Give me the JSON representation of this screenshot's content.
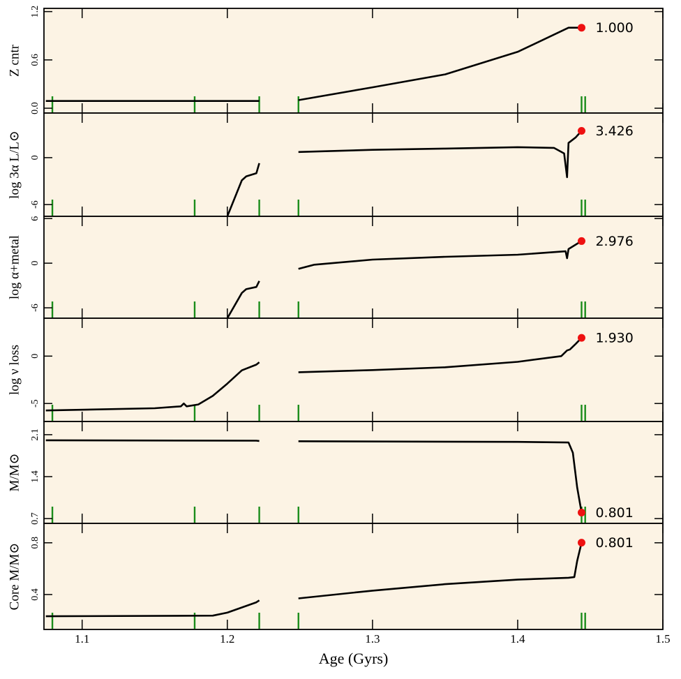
{
  "chart_data": [
    {
      "type": "line",
      "ylabel": "Z cntr",
      "color": "#000000",
      "x": [
        1.075,
        1.15,
        1.222,
        1.235,
        1.249,
        1.3,
        1.35,
        1.4,
        1.435,
        1.444
      ],
      "values": [
        0.09,
        0.09,
        0.09,
        null,
        0.1,
        0.26,
        0.42,
        0.7,
        1.0,
        1.0
      ],
      "xlim": [
        1.0737,
        1.5
      ],
      "xticks": [
        1.1,
        1.2,
        1.3,
        1.4,
        1.5
      ],
      "ylim": [
        -0.06,
        1.24
      ],
      "yticks": [
        {
          "value": 0,
          "label": "0.0"
        },
        0.6,
        1.2
      ],
      "vlines": [
        1.0795,
        1.1775,
        1.222,
        1.249,
        1.444,
        1.4465
      ],
      "vline_color": "#1a8c1a",
      "marker": {
        "x": 1.444,
        "values": [
          1.0
        ],
        "value_labels": [
          "1.000"
        ],
        "color": "#ee1111"
      }
    },
    {
      "type": "line",
      "ylabel": "log 3α L/L⊙",
      "color": "#000000",
      "x": [
        1.2,
        1.21,
        1.213,
        1.22,
        1.222,
        1.235,
        1.249,
        1.3,
        1.35,
        1.4,
        1.425,
        1.432,
        1.434,
        1.435,
        1.44,
        1.444
      ],
      "values": [
        -7.5,
        -2.9,
        -2.4,
        -2.0,
        -0.7,
        null,
        0.72,
        1.0,
        1.16,
        1.34,
        1.25,
        0.54,
        -2.5,
        1.88,
        2.6,
        3.426
      ],
      "xlim": [
        1.0737,
        1.5
      ],
      "xticks": [
        1.1,
        1.2,
        1.3,
        1.4,
        1.5
      ],
      "ylim": [
        -7.5,
        5.7
      ],
      "yticks": [
        -6,
        0
      ],
      "vlines": [
        1.0795,
        1.1775,
        1.222,
        1.249,
        1.444,
        1.4465
      ],
      "vline_color": "#1a8c1a",
      "marker": {
        "x": 1.444,
        "values": [
          3.426
        ],
        "value_labels": [
          "3.426"
        ],
        "color": "#ee1111"
      }
    },
    {
      "type": "line",
      "ylabel": "log α+metal",
      "color": "#000000",
      "x": [
        1.2,
        1.21,
        1.213,
        1.22,
        1.222,
        1.235,
        1.249,
        1.26,
        1.3,
        1.35,
        1.4,
        1.433,
        1.434,
        1.435,
        1.444
      ],
      "values": [
        -7.4,
        -4.0,
        -3.5,
        -3.2,
        -2.4,
        null,
        -0.76,
        -0.2,
        0.48,
        0.86,
        1.14,
        1.6,
        0.67,
        1.9,
        2.976
      ],
      "xlim": [
        1.0737,
        1.5
      ],
      "xticks": [
        1.1,
        1.2,
        1.3,
        1.4,
        1.5
      ],
      "ylim": [
        -7.4,
        6.3
      ],
      "yticks": [
        -6,
        0,
        6
      ],
      "vlines": [
        1.0795,
        1.1775,
        1.222,
        1.249,
        1.444,
        1.4465
      ],
      "vline_color": "#1a8c1a",
      "marker": {
        "x": 1.444,
        "values": [
          2.976
        ],
        "value_labels": [
          "2.976"
        ],
        "color": "#ee1111"
      }
    },
    {
      "type": "line",
      "ylabel": "log ν loss",
      "color": "#000000",
      "x": [
        1.075,
        1.15,
        1.168,
        1.17,
        1.172,
        1.18,
        1.19,
        1.2,
        1.21,
        1.22,
        1.222,
        1.235,
        1.249,
        1.3,
        1.35,
        1.4,
        1.43,
        1.434,
        1.436,
        1.44,
        1.444
      ],
      "values": [
        -5.74,
        -5.5,
        -5.3,
        -5.0,
        -5.3,
        -5.1,
        -4.2,
        -2.9,
        -1.5,
        -0.9,
        -0.65,
        null,
        -1.7,
        -1.47,
        -1.18,
        -0.6,
        0.0,
        0.6,
        0.7,
        1.3,
        1.93
      ],
      "xlim": [
        1.0737,
        1.5
      ],
      "xticks": [
        1.1,
        1.2,
        1.3,
        1.4,
        1.5
      ],
      "ylim": [
        -6.9,
        4.0
      ],
      "yticks": [
        -5,
        0
      ],
      "vlines": [
        1.0795,
        1.1775,
        1.222,
        1.249,
        1.444,
        1.4465
      ],
      "vline_color": "#1a8c1a",
      "marker": {
        "x": 1.444,
        "values": [
          1.93
        ],
        "value_labels": [
          "1.930"
        ],
        "color": "#ee1111"
      }
    },
    {
      "type": "line",
      "ylabel": "M/M⊙",
      "color": "#000000",
      "x": [
        1.075,
        1.22,
        1.222,
        1.235,
        1.249,
        1.4,
        1.435,
        1.438,
        1.441,
        1.444
      ],
      "values": [
        2.007,
        2.0,
        1.995,
        null,
        1.99,
        1.98,
        1.97,
        1.8,
        1.22,
        0.801
      ],
      "xlim": [
        1.0737,
        1.5
      ],
      "xticks": [
        1.1,
        1.2,
        1.3,
        1.4,
        1.5
      ],
      "ylim": [
        0.62,
        2.32
      ],
      "yticks": [
        0.7,
        1.4,
        2.1
      ],
      "vlines": [
        1.0795,
        1.1775,
        1.222,
        1.249,
        1.444,
        1.4465
      ],
      "vline_color": "#1a8c1a",
      "marker": {
        "x": 1.444,
        "values": [
          0.801
        ],
        "value_labels": [
          "0.801"
        ],
        "color": "#ee1111"
      }
    },
    {
      "type": "line",
      "ylabel": "Core M/M⊙",
      "xlabel": "Age (Gyrs)",
      "color": "#000000",
      "x": [
        1.075,
        1.19,
        1.2,
        1.21,
        1.22,
        1.222,
        1.235,
        1.249,
        1.3,
        1.35,
        1.4,
        1.435,
        1.439,
        1.441,
        1.444
      ],
      "values": [
        0.232,
        0.237,
        0.26,
        0.3,
        0.34,
        0.355,
        null,
        0.37,
        0.43,
        0.48,
        0.515,
        0.53,
        0.535,
        0.66,
        0.801
      ],
      "xlim": [
        1.0737,
        1.5
      ],
      "xticks": [
        1.1,
        1.2,
        1.3,
        1.4,
        1.5
      ],
      "ylim": [
        0.13,
        0.95
      ],
      "yticks": [
        0.4,
        0.8
      ],
      "vlines": [
        1.0795,
        1.1775,
        1.222,
        1.249,
        1.444,
        1.4465
      ],
      "vline_color": "#1a8c1a",
      "marker": {
        "x": 1.444,
        "values": [
          0.801
        ],
        "value_labels": [
          "0.801"
        ],
        "color": "#ee1111"
      }
    }
  ]
}
